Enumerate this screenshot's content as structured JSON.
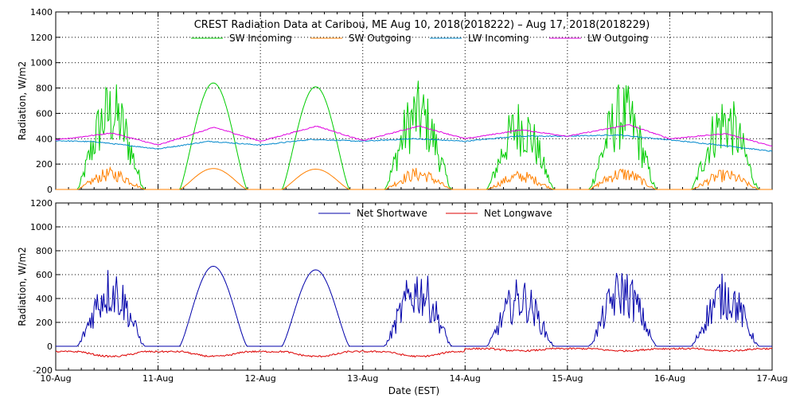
{
  "title": "CREST Radiation Data at Caribou, ME   Aug 10, 2018(2018222) – Aug 17, 2018(2018229)",
  "chart_data": [
    {
      "type": "line",
      "panel": "top",
      "ylabel": "Radiation, W/m2",
      "ylim": [
        0,
        1400
      ],
      "yticks": [
        "0",
        "200",
        "400",
        "600",
        "800",
        "1000",
        "1200",
        "1400"
      ],
      "xlim": [
        "10-Aug",
        "17-Aug"
      ],
      "grid": true,
      "legend_placement": "top",
      "series": [
        {
          "name": "SW Incoming",
          "color": "#00cc00",
          "peaks": [
            880,
            840,
            810,
            860,
            730,
            860,
            780
          ]
        },
        {
          "name": "SW Outgoing",
          "color": "#ff8000",
          "peaks": [
            175,
            165,
            160,
            175,
            150,
            180,
            160
          ]
        },
        {
          "name": "LW Incoming",
          "color": "#0088cc",
          "points": [
            [
              0,
              385
            ],
            [
              0.4,
              375
            ],
            [
              1.0,
              320
            ],
            [
              1.5,
              380
            ],
            [
              2.0,
              350
            ],
            [
              2.5,
              395
            ],
            [
              3.0,
              380
            ],
            [
              3.5,
              400
            ],
            [
              4.0,
              380
            ],
            [
              4.5,
              420
            ],
            [
              5.0,
              420
            ],
            [
              5.5,
              430
            ],
            [
              6.0,
              390
            ],
            [
              6.5,
              350
            ],
            [
              7.0,
              300
            ]
          ]
        },
        {
          "name": "LW Outgoing",
          "color": "#e000e0",
          "points": [
            [
              0,
              390
            ],
            [
              0.55,
              445
            ],
            [
              1.0,
              350
            ],
            [
              1.55,
              490
            ],
            [
              2.0,
              380
            ],
            [
              2.55,
              500
            ],
            [
              3.0,
              385
            ],
            [
              3.55,
              500
            ],
            [
              4.0,
              400
            ],
            [
              4.55,
              470
            ],
            [
              5.0,
              420
            ],
            [
              5.6,
              510
            ],
            [
              6.0,
              400
            ],
            [
              6.55,
              440
            ],
            [
              7.0,
              340
            ]
          ]
        }
      ]
    },
    {
      "type": "line",
      "panel": "bottom",
      "ylabel": "Radiation, W/m2",
      "xlabel": "Date (EST)",
      "ylim": [
        -200,
        1200
      ],
      "yticks": [
        "-200",
        "0",
        "200",
        "400",
        "600",
        "800",
        "1000",
        "1200"
      ],
      "xticks": [
        "10-Aug",
        "11-Aug",
        "12-Aug",
        "13-Aug",
        "14-Aug",
        "15-Aug",
        "16-Aug",
        "17-Aug"
      ],
      "grid": true,
      "legend_placement": "top",
      "series": [
        {
          "name": "Net Shortwave",
          "color": "#0000aa",
          "peaks": [
            690,
            670,
            640,
            680,
            580,
            670,
            620
          ]
        },
        {
          "name": "Net Longwave",
          "color": "#dd0000",
          "typical_range": [
            -110,
            -10
          ]
        }
      ]
    }
  ]
}
